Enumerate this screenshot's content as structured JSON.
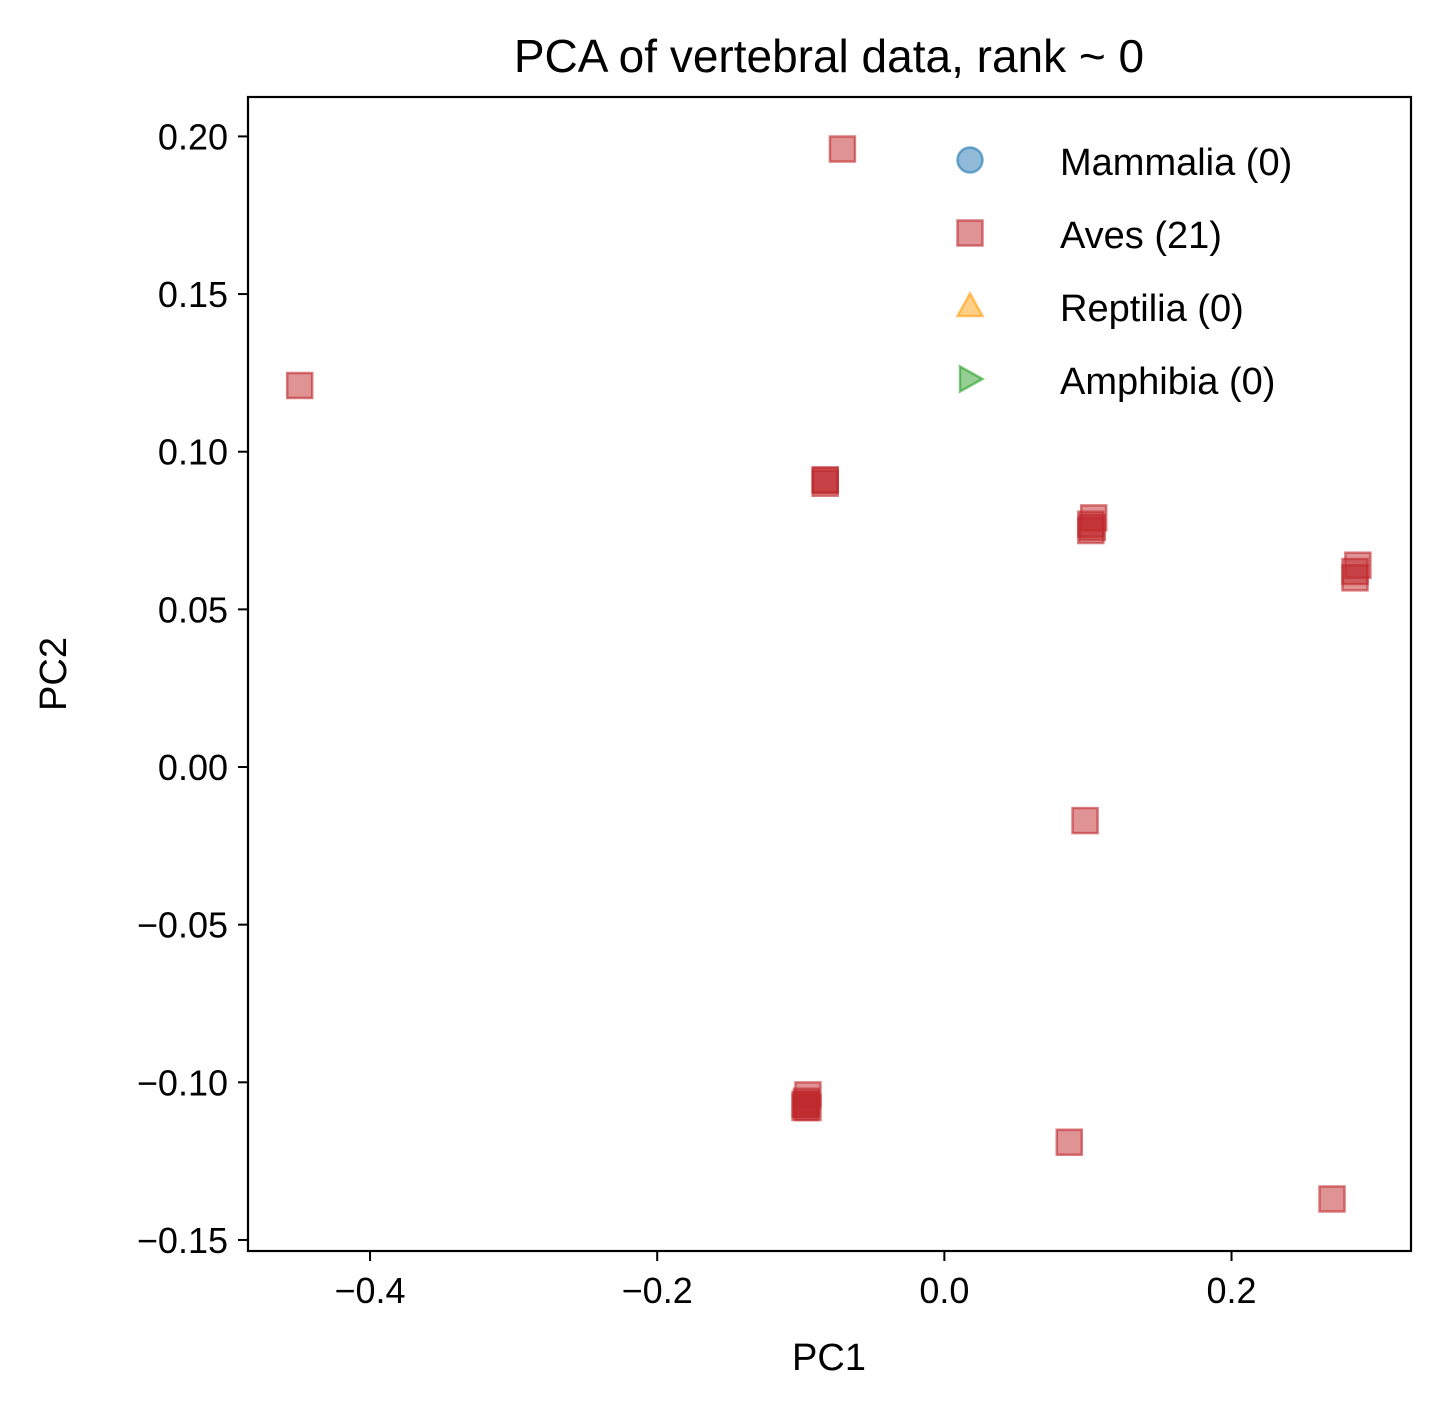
{
  "chart_data": {
    "type": "scatter",
    "title": "PCA of vertebral data, rank ~ 0",
    "xlabel": "PC1",
    "ylabel": "PC2",
    "xlim": [
      -0.485,
      0.325
    ],
    "ylim": [
      -0.1535,
      0.2125
    ],
    "xticks": [
      -0.4,
      -0.2,
      0.0,
      0.2
    ],
    "xtick_labels": [
      "−0.4",
      "−0.2",
      "0.0",
      "0.2"
    ],
    "yticks": [
      0.2,
      0.15,
      0.1,
      0.05,
      0.0,
      -0.05,
      -0.1,
      -0.15
    ],
    "ytick_labels": [
      "0.20",
      "0.15",
      "0.10",
      "0.05",
      "0.00",
      "−0.05",
      "−0.10",
      "−0.15"
    ],
    "grid": false,
    "legend_position": "top-right",
    "series": [
      {
        "name": "Mammalia (0)",
        "marker": "circle",
        "color": "#1f77b4",
        "points": []
      },
      {
        "name": "Aves (21)",
        "marker": "square",
        "color": "#c0282b",
        "points": [
          [
            -0.449,
            0.121
          ],
          [
            -0.071,
            0.196
          ],
          [
            -0.083,
            0.091
          ],
          [
            -0.083,
            0.09
          ],
          [
            -0.083,
            0.091
          ],
          [
            0.104,
            0.079
          ],
          [
            0.103,
            0.076
          ],
          [
            0.102,
            0.075
          ],
          [
            0.102,
            0.077
          ],
          [
            0.288,
            0.064
          ],
          [
            0.286,
            0.062
          ],
          [
            0.286,
            0.06
          ],
          [
            0.098,
            -0.017
          ],
          [
            -0.095,
            -0.104
          ],
          [
            -0.096,
            -0.106
          ],
          [
            -0.097,
            -0.107
          ],
          [
            -0.095,
            -0.108
          ],
          [
            -0.097,
            -0.108
          ],
          [
            -0.096,
            -0.107
          ],
          [
            0.087,
            -0.119
          ],
          [
            0.27,
            -0.137
          ]
        ]
      },
      {
        "name": "Reptilia (0)",
        "marker": "triangle-up",
        "color": "#ff9f0e",
        "points": []
      },
      {
        "name": "Amphibia (0)",
        "marker": "triangle-right",
        "color": "#2ca02c",
        "points": []
      }
    ]
  }
}
